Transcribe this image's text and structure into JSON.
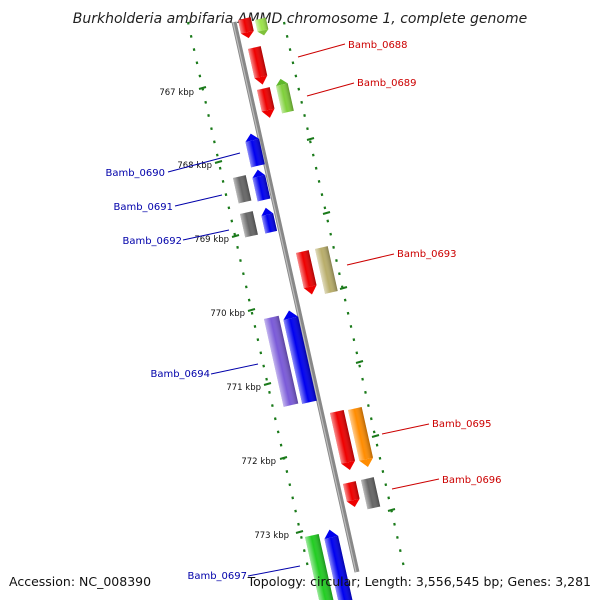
{
  "title": "Burkholderia ambifaria AMMD chromosome 1, complete genome",
  "accession": "Accession: NC_008390",
  "topology": "Topology: circular; Length: 3,556,545 bp; Genes: 3,281",
  "colors": {
    "axis": "#888888",
    "tick": "#1a7a1a",
    "label_right": "#cc0000",
    "label_left": "#0000aa"
  },
  "ruler": [
    {
      "label": "767 kbp",
      "pos": 767
    },
    {
      "label": "768 kbp",
      "pos": 768
    },
    {
      "label": "769 kbp",
      "pos": 769
    },
    {
      "label": "770 kbp",
      "pos": 770
    },
    {
      "label": "771 kbp",
      "pos": 771
    },
    {
      "label": "772 kbp",
      "pos": 772
    },
    {
      "label": "773 kbp",
      "pos": 773
    }
  ],
  "gene_labels": [
    {
      "label": "Bamb_0688",
      "side": "right",
      "color": "#cc0000"
    },
    {
      "label": "Bamb_0689",
      "side": "right",
      "color": "#cc0000"
    },
    {
      "label": "Bamb_0690",
      "side": "left",
      "color": "#0000aa"
    },
    {
      "label": "Bamb_0691",
      "side": "left",
      "color": "#0000aa"
    },
    {
      "label": "Bamb_0692",
      "side": "left",
      "color": "#0000aa"
    },
    {
      "label": "Bamb_0693",
      "side": "right",
      "color": "#cc0000"
    },
    {
      "label": "Bamb_0694",
      "side": "left",
      "color": "#0000aa"
    },
    {
      "label": "Bamb_0695",
      "side": "right",
      "color": "#cc0000"
    },
    {
      "label": "Bamb_0696",
      "side": "right",
      "color": "#cc0000"
    },
    {
      "label": "Bamb_0697",
      "side": "left",
      "color": "#0000aa"
    }
  ]
}
